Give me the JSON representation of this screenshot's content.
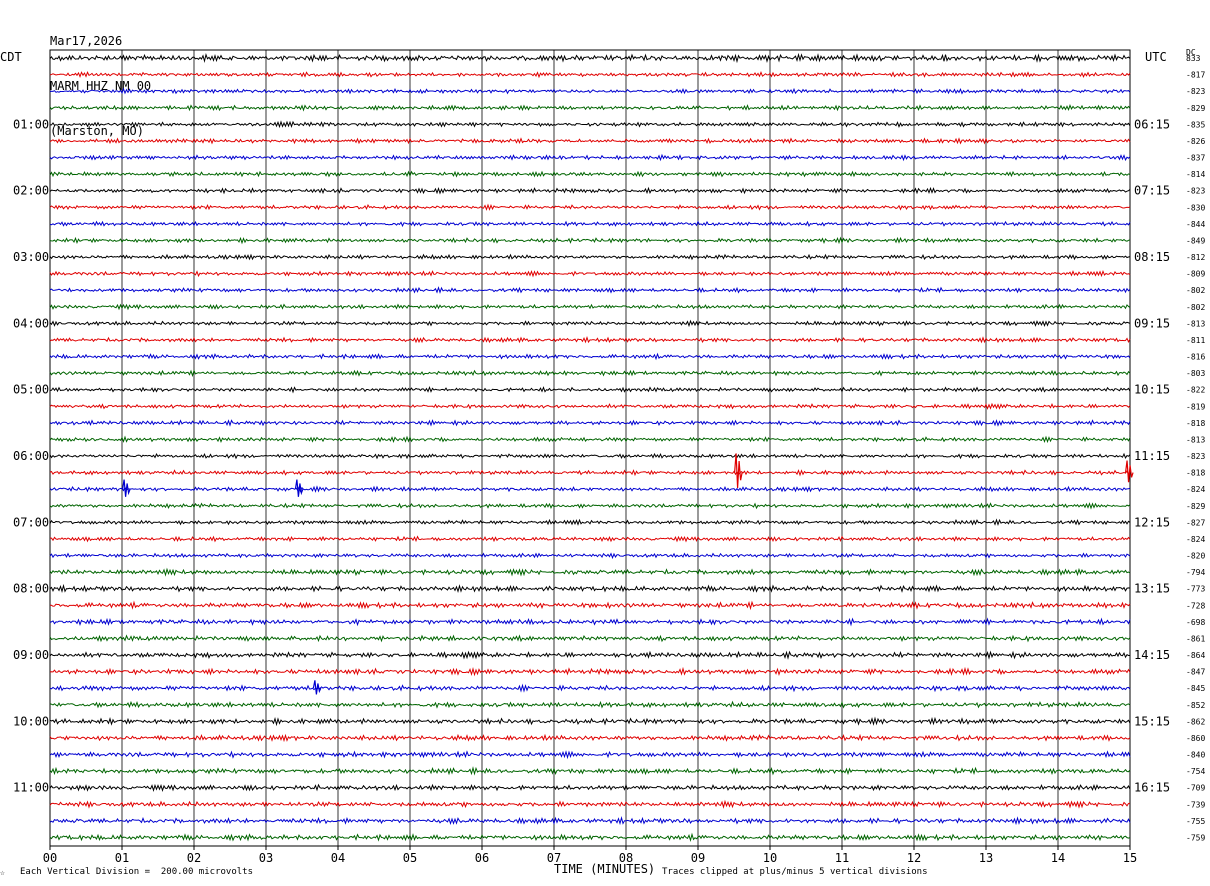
{
  "header": {
    "date": "Mar17,2026",
    "station": "MARM HHZ NM 00",
    "location": "(Marston, MO)"
  },
  "left_tz": "CDT",
  "right_tz": "UTC",
  "dc_label": "DC",
  "footer": {
    "scale_note": "Each Vertical Division =  200.00 microvolts",
    "clip_note": "Traces clipped at plus/minus 5 vertical divisions",
    "corner_mark": "☆"
  },
  "chart_data": {
    "type": "line",
    "subtype": "helicorder",
    "xlabel": "TIME (MINUTES)",
    "x_ticks": [
      "00",
      "01",
      "02",
      "03",
      "04",
      "05",
      "06",
      "07",
      "08",
      "09",
      "10",
      "11",
      "12",
      "13",
      "14",
      "15"
    ],
    "xlim": [
      0,
      15
    ],
    "trace_colors": [
      "#000000",
      "#e00000",
      "#0000d0",
      "#006400"
    ],
    "left_hour_labels": [
      "01:00",
      "02:00",
      "03:00",
      "04:00",
      "05:00",
      "06:00",
      "07:00",
      "08:00",
      "09:00",
      "10:00",
      "11:00"
    ],
    "right_hour_labels": [
      "06:15",
      "07:15",
      "08:15",
      "09:15",
      "10:15",
      "11:15",
      "12:15",
      "13:15",
      "14:15",
      "15:15",
      "16:15"
    ],
    "dc_offsets": [
      "833",
      "-817",
      "-823",
      "-829",
      "-835",
      "-826",
      "-837",
      "-814",
      "-823",
      "-830",
      "-844",
      "-849",
      "-812",
      "-809",
      "-802",
      "-802",
      "-813",
      "-811",
      "-816",
      "-803",
      "-822",
      "-819",
      "-818",
      "-813",
      "-823",
      "-818",
      "-824",
      "-829",
      "-827",
      "-824",
      "-820",
      "-794",
      "-773",
      "-728",
      "-698",
      "-861",
      "-864",
      "-847",
      "-845",
      "-852",
      "-862",
      "-860",
      "-840",
      "-754",
      "-709",
      "-739",
      "-755",
      "-759"
    ],
    "events": [
      {
        "row": 25,
        "minute": 9.55,
        "amplitude": 3.2
      },
      {
        "row": 26,
        "minute": 1.05,
        "amplitude": 1.6
      },
      {
        "row": 26,
        "minute": 3.45,
        "amplitude": 1.6
      },
      {
        "row": 25,
        "minute": 14.98,
        "amplitude": 2.0
      },
      {
        "row": 38,
        "minute": 3.7,
        "amplitude": 1.3
      }
    ]
  }
}
